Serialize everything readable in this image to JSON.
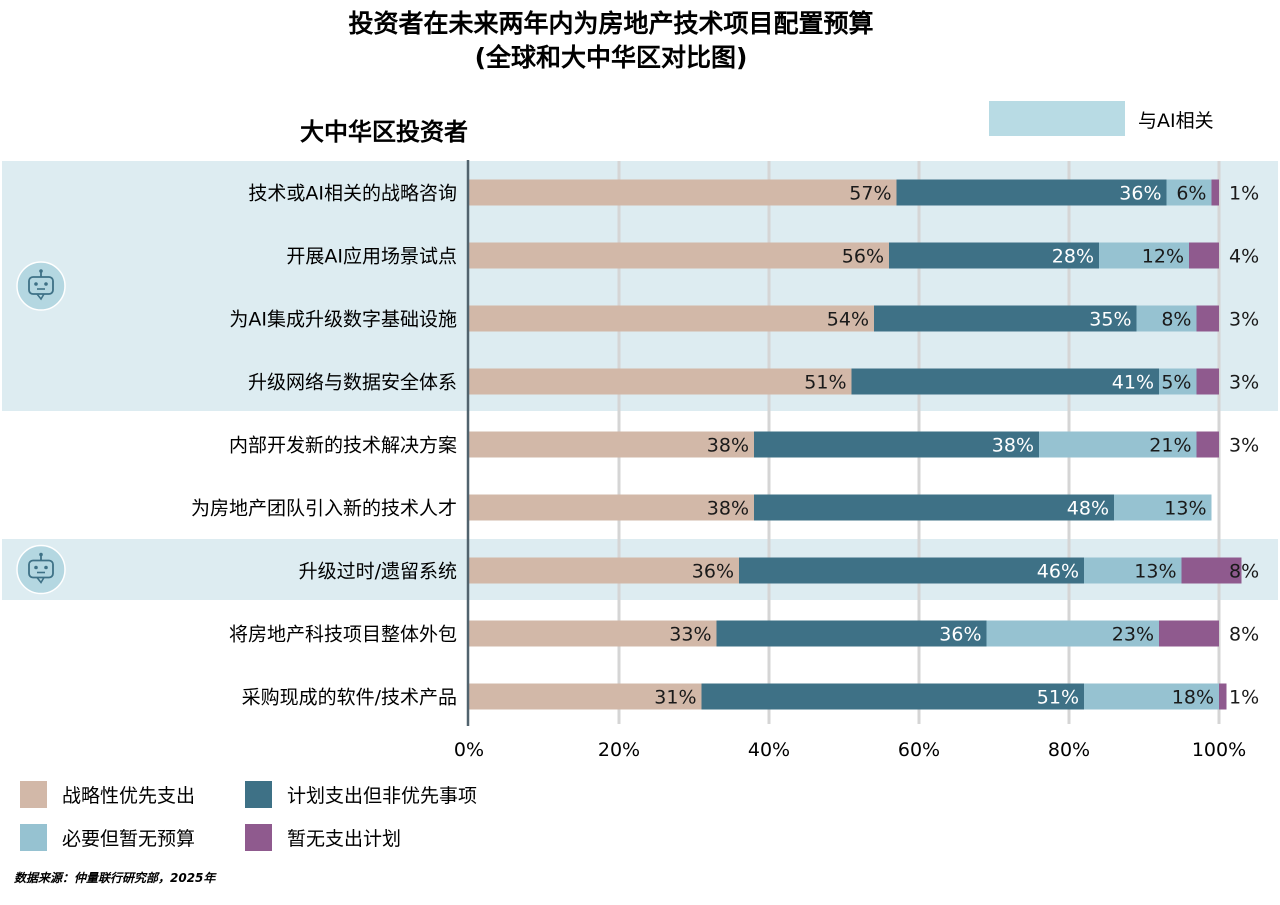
{
  "chart_data": {
    "type": "bar",
    "orientation": "horizontal",
    "stacked": true,
    "title": [
      "投资者在未来两年内为房地产技术项目配置预算",
      "(全球和大中华区对比图)"
    ],
    "subtitle": "大中华区投资者",
    "categories": [
      "技术或AI相关的战略咨询",
      "开展AI应用场景试点",
      "为AI集成升级数字基础设施",
      "升级网络与数据安全体系",
      "内部开发新的技术解决方案",
      "为房地产团队引入新的技术人才",
      "升级过时/遗留系统",
      "将房地产科技项目整体外包",
      "采购现成的软件/技术产品"
    ],
    "ai_related": [
      true,
      true,
      true,
      true,
      false,
      false,
      true,
      false,
      false
    ],
    "series": [
      {
        "name": "战略性优先支出",
        "color": "#d2b8a8",
        "text_color": "#1a1a1a",
        "values": [
          57,
          56,
          54,
          51,
          38,
          38,
          36,
          33,
          31
        ]
      },
      {
        "name": "计划支出但非优先事项",
        "color": "#3e7186",
        "text_color": "#ffffff",
        "values": [
          36,
          28,
          35,
          41,
          38,
          48,
          46,
          36,
          51
        ]
      },
      {
        "name": "必要但暂无预算",
        "color": "#96c2d1",
        "text_color": "#1a1a1a",
        "values": [
          6,
          12,
          8,
          5,
          21,
          13,
          13,
          23,
          18
        ]
      },
      {
        "name": "暂无支出计划",
        "color": "#8f5a8e",
        "text_color": "#1a1a1a",
        "values": [
          1,
          4,
          3,
          3,
          3,
          null,
          8,
          8,
          1
        ]
      }
    ],
    "xlim": [
      0,
      100
    ],
    "xticks": [
      0,
      20,
      40,
      60,
      80,
      100
    ],
    "xtick_labels": [
      "0%",
      "20%",
      "40%",
      "60%",
      "80%",
      "100%"
    ],
    "grid": true,
    "legend_placement": "bottom-left",
    "ai_legend_label": "与AI相关",
    "ai_highlight_color": "#ddecf1",
    "ai_legend_swatch_color": "#b8dbe4",
    "source": "数据来源：仲量联行研究部，2025年"
  }
}
